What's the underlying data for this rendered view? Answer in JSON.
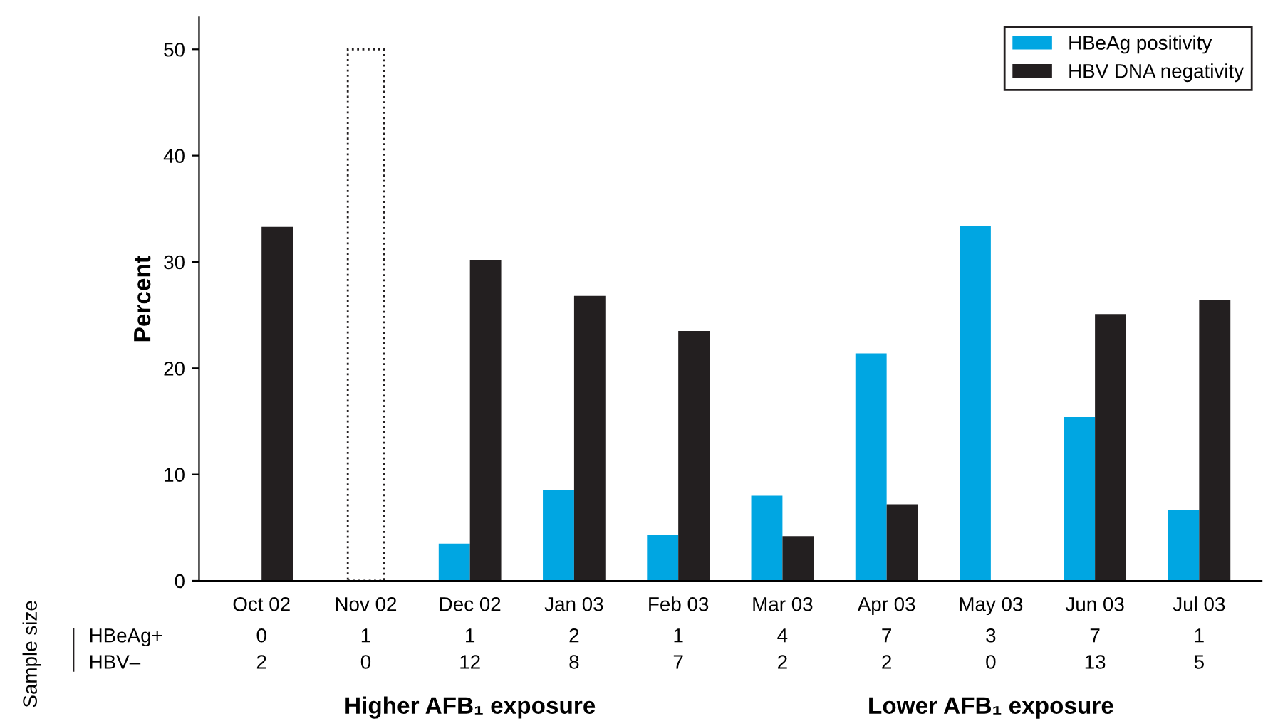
{
  "chart_data": {
    "type": "bar",
    "ylabel": "Percent",
    "categories": [
      "Oct 02",
      "Nov 02",
      "Dec 02",
      "Jan 03",
      "Feb 03",
      "Mar 03",
      "Apr 03",
      "May 03",
      "Jun 03",
      "Jul 03"
    ],
    "series": [
      {
        "name": "HBeAg positivity",
        "color": "#00a6e2",
        "values": [
          0,
          null,
          3.5,
          8.5,
          4.3,
          8.0,
          21.4,
          33.4,
          15.4,
          6.7
        ]
      },
      {
        "name": "HBV DNA negativity",
        "color": "#231f20",
        "values": [
          33.3,
          null,
          30.2,
          26.8,
          23.5,
          4.2,
          7.2,
          0,
          25.1,
          26.4
        ]
      },
      {
        "color": "#ffffff",
        "line_style": "dotted",
        "values": [
          null,
          50,
          null,
          null,
          null,
          null,
          null,
          null,
          null,
          null
        ]
      }
    ],
    "ylim": [
      0,
      53
    ],
    "yticks": [
      0,
      10,
      20,
      30,
      40,
      50
    ],
    "grid": false,
    "legend": "top right",
    "annotations": [
      "Sample size",
      "HBeAg+",
      "HBV–",
      "0",
      "1",
      "1",
      "2",
      "1",
      "4",
      "7",
      "3",
      "7",
      "1",
      "2",
      "0",
      "12",
      "8",
      "7",
      "2",
      "2",
      "0",
      "13",
      "5",
      "Higher AFB₁ exposure",
      "Lower AFB₁ exposure"
    ]
  }
}
